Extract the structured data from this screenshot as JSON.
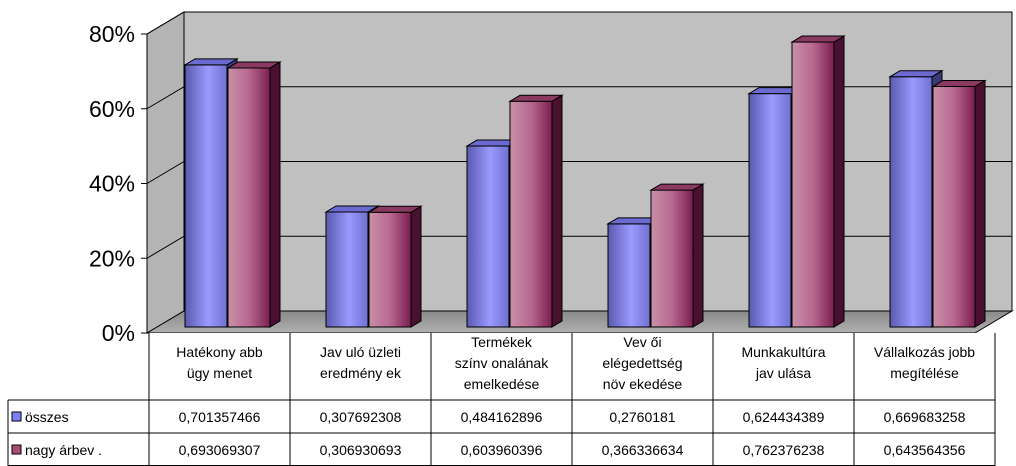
{
  "chart_data": {
    "type": "bar",
    "ylim": [
      0,
      0.8
    ],
    "yticks": [
      "0%",
      "20%",
      "40%",
      "60%",
      "80%"
    ],
    "legend_placement": "data-table",
    "grid": true,
    "categories": [
      [
        "Hatékony abb",
        "ügy menet"
      ],
      [
        "Jav uló üzleti",
        "eredmény ek"
      ],
      [
        "Termékek",
        "színv onalának",
        "emelkedése"
      ],
      [
        "Vev ői",
        "elégedettség",
        "növ ekedése"
      ],
      [
        "Munkakultúra",
        "jav ulása"
      ],
      [
        "Vállalkozás jobb",
        "megítélése"
      ]
    ],
    "series": [
      {
        "name": "összes",
        "color": "#8080ff",
        "values": [
          0.701357466,
          0.307692308,
          0.484162896,
          0.2760181,
          0.624434389,
          0.669683258
        ],
        "labels": [
          "0,701357466",
          "0,307692308",
          "0,484162896",
          "0,2760181",
          "0,624434389",
          "0,669683258"
        ]
      },
      {
        "name": "nagy árbev .",
        "color": "#a64d79",
        "values": [
          0.693069307,
          0.306930693,
          0.603960396,
          0.366336634,
          0.762376238,
          0.643564356
        ],
        "labels": [
          "0,693069307",
          "0,306930693",
          "0,603960396",
          "0,366336634",
          "0,762376238",
          "0,643564356"
        ]
      }
    ]
  }
}
